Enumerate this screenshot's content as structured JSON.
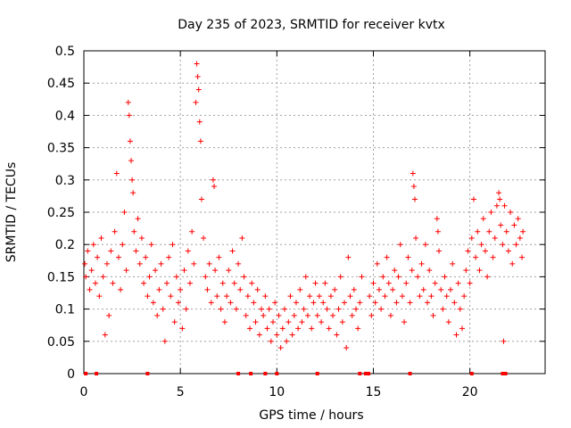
{
  "chart_data": {
    "type": "scatter",
    "title": "Day 235 of 2023, SRMTID for receiver kvtx",
    "xlabel": "GPS time / hours",
    "ylabel": "SRMTID / TECUs",
    "xlim": [
      0,
      23.9
    ],
    "ylim": [
      0,
      0.5
    ],
    "xticks": [
      0,
      5,
      10,
      15,
      20
    ],
    "xtick_labels": [
      "0",
      "5",
      "10",
      "15",
      "20"
    ],
    "yticks": [
      0,
      0.05,
      0.1,
      0.15,
      0.2,
      0.25,
      0.3,
      0.35,
      0.4,
      0.45,
      0.5
    ],
    "ytick_labels": [
      "0",
      "0.05",
      "0.1",
      "0.15",
      "0.2",
      "0.25",
      "0.3",
      "0.35",
      "0.4",
      "0.45",
      "0.5"
    ],
    "grid": true,
    "marker": "+",
    "color": "#ff0000",
    "series": [
      {
        "name": "SRMTID",
        "points": [
          [
            0.05,
            0.17
          ],
          [
            0.1,
            0.15
          ],
          [
            0.2,
            0.19
          ],
          [
            0.3,
            0.13
          ],
          [
            0.4,
            0.16
          ],
          [
            0.5,
            0.2
          ],
          [
            0.6,
            0.14
          ],
          [
            0.7,
            0.18
          ],
          [
            0.8,
            0.12
          ],
          [
            0.9,
            0.21
          ],
          [
            1.0,
            0.15
          ],
          [
            1.1,
            0.06
          ],
          [
            1.2,
            0.17
          ],
          [
            1.3,
            0.09
          ],
          [
            1.4,
            0.19
          ],
          [
            1.5,
            0.14
          ],
          [
            1.6,
            0.22
          ],
          [
            1.7,
            0.31
          ],
          [
            1.8,
            0.18
          ],
          [
            1.9,
            0.13
          ],
          [
            2.0,
            0.2
          ],
          [
            2.1,
            0.25
          ],
          [
            2.2,
            0.16
          ],
          [
            2.3,
            0.42
          ],
          [
            2.35,
            0.4
          ],
          [
            2.4,
            0.36
          ],
          [
            2.45,
            0.33
          ],
          [
            2.5,
            0.3
          ],
          [
            2.55,
            0.28
          ],
          [
            2.6,
            0.22
          ],
          [
            2.7,
            0.19
          ],
          [
            2.8,
            0.24
          ],
          [
            2.9,
            0.17
          ],
          [
            3.0,
            0.21
          ],
          [
            3.1,
            0.14
          ],
          [
            3.2,
            0.18
          ],
          [
            3.3,
            0.12
          ],
          [
            3.4,
            0.15
          ],
          [
            3.5,
            0.2
          ],
          [
            3.6,
            0.11
          ],
          [
            3.7,
            0.16
          ],
          [
            3.8,
            0.09
          ],
          [
            3.9,
            0.13
          ],
          [
            4.0,
            0.17
          ],
          [
            4.1,
            0.1
          ],
          [
            4.2,
            0.05
          ],
          [
            4.3,
            0.14
          ],
          [
            4.4,
            0.18
          ],
          [
            4.5,
            0.12
          ],
          [
            4.6,
            0.2
          ],
          [
            4.7,
            0.08
          ],
          [
            4.8,
            0.15
          ],
          [
            4.9,
            0.11
          ],
          [
            5.0,
            0.13
          ],
          [
            5.1,
            0.07
          ],
          [
            5.2,
            0.16
          ],
          [
            5.3,
            0.1
          ],
          [
            5.4,
            0.19
          ],
          [
            5.5,
            0.14
          ],
          [
            5.6,
            0.22
          ],
          [
            5.7,
            0.17
          ],
          [
            5.8,
            0.42
          ],
          [
            5.85,
            0.48
          ],
          [
            5.9,
            0.46
          ],
          [
            5.95,
            0.44
          ],
          [
            6.0,
            0.39
          ],
          [
            6.05,
            0.36
          ],
          [
            6.1,
            0.27
          ],
          [
            6.2,
            0.21
          ],
          [
            6.3,
            0.15
          ],
          [
            6.4,
            0.13
          ],
          [
            6.5,
            0.17
          ],
          [
            6.6,
            0.11
          ],
          [
            6.7,
            0.3
          ],
          [
            6.75,
            0.29
          ],
          [
            6.8,
            0.16
          ],
          [
            6.9,
            0.12
          ],
          [
            7.0,
            0.18
          ],
          [
            7.1,
            0.1
          ],
          [
            7.2,
            0.14
          ],
          [
            7.3,
            0.08
          ],
          [
            7.4,
            0.12
          ],
          [
            7.5,
            0.16
          ],
          [
            7.6,
            0.11
          ],
          [
            7.7,
            0.19
          ],
          [
            7.8,
            0.14
          ],
          [
            7.9,
            0.1
          ],
          [
            8.0,
            0.17
          ],
          [
            8.1,
            0.13
          ],
          [
            8.2,
            0.21
          ],
          [
            8.3,
            0.15
          ],
          [
            8.4,
            0.09
          ],
          [
            8.5,
            0.12
          ],
          [
            8.6,
            0.07
          ],
          [
            8.7,
            0.14
          ],
          [
            8.8,
            0.11
          ],
          [
            8.9,
            0.08
          ],
          [
            9.0,
            0.13
          ],
          [
            9.1,
            0.06
          ],
          [
            9.2,
            0.1
          ],
          [
            9.3,
            0.09
          ],
          [
            9.4,
            0.12
          ],
          [
            9.5,
            0.07
          ],
          [
            9.6,
            0.1
          ],
          [
            9.7,
            0.05
          ],
          [
            9.8,
            0.08
          ],
          [
            9.9,
            0.11
          ],
          [
            10.0,
            0.06
          ],
          [
            10.1,
            0.09
          ],
          [
            10.2,
            0.04
          ],
          [
            10.3,
            0.07
          ],
          [
            10.4,
            0.1
          ],
          [
            10.5,
            0.05
          ],
          [
            10.6,
            0.08
          ],
          [
            10.7,
            0.12
          ],
          [
            10.8,
            0.06
          ],
          [
            10.9,
            0.09
          ],
          [
            11.0,
            0.11
          ],
          [
            11.1,
            0.07
          ],
          [
            11.2,
            0.13
          ],
          [
            11.3,
            0.08
          ],
          [
            11.4,
            0.1
          ],
          [
            11.5,
            0.15
          ],
          [
            11.6,
            0.09
          ],
          [
            11.7,
            0.12
          ],
          [
            11.8,
            0.07
          ],
          [
            11.9,
            0.11
          ],
          [
            12.0,
            0.14
          ],
          [
            12.1,
            0.09
          ],
          [
            12.2,
            0.12
          ],
          [
            12.3,
            0.08
          ],
          [
            12.4,
            0.11
          ],
          [
            12.5,
            0.14
          ],
          [
            12.6,
            0.1
          ],
          [
            12.7,
            0.07
          ],
          [
            12.8,
            0.12
          ],
          [
            12.9,
            0.09
          ],
          [
            13.0,
            0.13
          ],
          [
            13.1,
            0.06
          ],
          [
            13.2,
            0.1
          ],
          [
            13.3,
            0.15
          ],
          [
            13.4,
            0.08
          ],
          [
            13.5,
            0.11
          ],
          [
            13.6,
            0.04
          ],
          [
            13.7,
            0.18
          ],
          [
            13.8,
            0.12
          ],
          [
            13.9,
            0.09
          ],
          [
            14.0,
            0.13
          ],
          [
            14.1,
            0.1
          ],
          [
            14.2,
            0.07
          ],
          [
            14.3,
            0.11
          ],
          [
            14.4,
            0.15
          ],
          [
            14.8,
            0.12
          ],
          [
            14.9,
            0.09
          ],
          [
            15.0,
            0.14
          ],
          [
            15.1,
            0.11
          ],
          [
            15.2,
            0.17
          ],
          [
            15.3,
            0.13
          ],
          [
            15.4,
            0.1
          ],
          [
            15.5,
            0.15
          ],
          [
            15.6,
            0.12
          ],
          [
            15.7,
            0.18
          ],
          [
            15.8,
            0.14
          ],
          [
            15.9,
            0.09
          ],
          [
            16.0,
            0.13
          ],
          [
            16.1,
            0.16
          ],
          [
            16.2,
            0.11
          ],
          [
            16.3,
            0.15
          ],
          [
            16.4,
            0.2
          ],
          [
            16.5,
            0.12
          ],
          [
            16.6,
            0.08
          ],
          [
            16.7,
            0.14
          ],
          [
            16.8,
            0.18
          ],
          [
            16.9,
            0.11
          ],
          [
            17.0,
            0.16
          ],
          [
            17.05,
            0.31
          ],
          [
            17.1,
            0.29
          ],
          [
            17.15,
            0.27
          ],
          [
            17.2,
            0.21
          ],
          [
            17.3,
            0.15
          ],
          [
            17.4,
            0.12
          ],
          [
            17.5,
            0.17
          ],
          [
            17.6,
            0.13
          ],
          [
            17.7,
            0.2
          ],
          [
            17.8,
            0.11
          ],
          [
            17.9,
            0.16
          ],
          [
            18.0,
            0.12
          ],
          [
            18.1,
            0.09
          ],
          [
            18.2,
            0.14
          ],
          [
            18.3,
            0.24
          ],
          [
            18.35,
            0.22
          ],
          [
            18.4,
            0.19
          ],
          [
            18.5,
            0.13
          ],
          [
            18.6,
            0.1
          ],
          [
            18.7,
            0.15
          ],
          [
            18.8,
            0.12
          ],
          [
            18.9,
            0.08
          ],
          [
            19.0,
            0.13
          ],
          [
            19.1,
            0.17
          ],
          [
            19.2,
            0.11
          ],
          [
            19.3,
            0.06
          ],
          [
            19.4,
            0.14
          ],
          [
            19.5,
            0.1
          ],
          [
            19.6,
            0.07
          ],
          [
            19.7,
            0.12
          ],
          [
            19.8,
            0.16
          ],
          [
            19.9,
            0.19
          ],
          [
            20.0,
            0.14
          ],
          [
            20.1,
            0.21
          ],
          [
            20.2,
            0.27
          ],
          [
            20.3,
            0.18
          ],
          [
            20.4,
            0.22
          ],
          [
            20.5,
            0.16
          ],
          [
            20.6,
            0.2
          ],
          [
            20.7,
            0.24
          ],
          [
            20.8,
            0.19
          ],
          [
            20.9,
            0.15
          ],
          [
            21.0,
            0.22
          ],
          [
            21.1,
            0.25
          ],
          [
            21.2,
            0.18
          ],
          [
            21.3,
            0.21
          ],
          [
            21.4,
            0.26
          ],
          [
            21.5,
            0.28
          ],
          [
            21.55,
            0.27
          ],
          [
            21.6,
            0.23
          ],
          [
            21.7,
            0.2
          ],
          [
            21.75,
            0.05
          ],
          [
            21.8,
            0.26
          ],
          [
            21.9,
            0.22
          ],
          [
            22.0,
            0.19
          ],
          [
            22.1,
            0.25
          ],
          [
            22.2,
            0.17
          ],
          [
            22.3,
            0.23
          ],
          [
            22.4,
            0.2
          ],
          [
            22.5,
            0.24
          ],
          [
            22.6,
            0.21
          ],
          [
            22.7,
            0.18
          ],
          [
            22.75,
            0.22
          ]
        ]
      }
    ],
    "zero_points": [
      0.1,
      0.65,
      3.3,
      8.0,
      8.65,
      9.4,
      10.0,
      12.1,
      14.3,
      14.6,
      14.75,
      16.9,
      20.1,
      21.7,
      21.85
    ]
  }
}
